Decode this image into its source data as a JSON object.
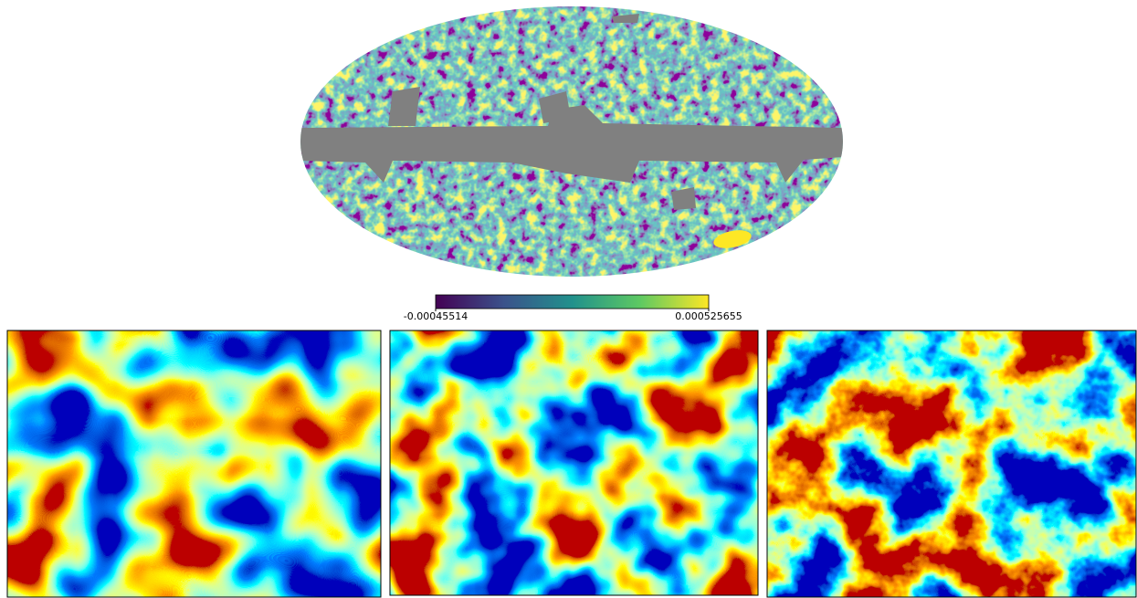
{
  "chart_data": {
    "type": "sky-map",
    "colormap": "viridis",
    "clim": [
      -0.00045514,
      0.000525655
    ],
    "cticks": [
      -0.00045514,
      0.000525655
    ]
  }
}
